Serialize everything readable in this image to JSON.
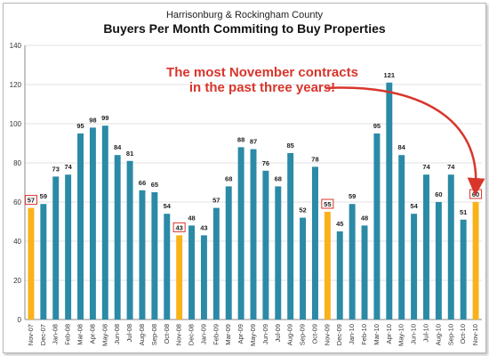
{
  "chart_data": {
    "type": "bar",
    "subtitle": "Harrisonburg & Rockingham County",
    "title": "Buyers Per Month Commiting to Buy Properties",
    "xlabel": "",
    "ylabel": "",
    "ylim": [
      0,
      140
    ],
    "yticks": [
      0,
      20,
      40,
      60,
      80,
      100,
      120,
      140
    ],
    "grid": true,
    "legend": "none",
    "categories": [
      "Nov-07",
      "Dec-07",
      "Jan-08",
      "Feb-08",
      "Mar-08",
      "Apr-08",
      "May-08",
      "Jun-08",
      "Jul-08",
      "Aug-08",
      "Sep-08",
      "Oct-08",
      "Nov-08",
      "Dec-08",
      "Jan-09",
      "Feb-09",
      "Mar-09",
      "Apr-09",
      "May-09",
      "Jun-09",
      "Jul-09",
      "Aug-09",
      "Sep-09",
      "Oct-09",
      "Nov-09",
      "Dec-09",
      "Jan-10",
      "Feb-10",
      "Mar-10",
      "Apr-10",
      "May-10",
      "Jun-10",
      "Jul-10",
      "Aug-10",
      "Sep-10",
      "Oct-10",
      "Nov-10"
    ],
    "values": [
      57,
      59,
      73,
      74,
      95,
      98,
      99,
      84,
      81,
      66,
      65,
      54,
      43,
      48,
      43,
      57,
      68,
      88,
      87,
      76,
      68,
      85,
      52,
      78,
      55,
      45,
      59,
      48,
      95,
      121,
      84,
      54,
      74,
      60,
      74,
      51,
      60
    ],
    "highlight_categories": [
      "Nov-07",
      "Nov-08",
      "Nov-09",
      "Nov-10"
    ],
    "colors": {
      "default": "#2b8aa6",
      "highlight": "#f9b21a",
      "label_box": "#d9352b",
      "annotation": "#d9352b"
    },
    "annotation": {
      "lines": [
        "The most November contracts",
        "in the past three years!"
      ],
      "points_to": "Nov-10"
    }
  }
}
